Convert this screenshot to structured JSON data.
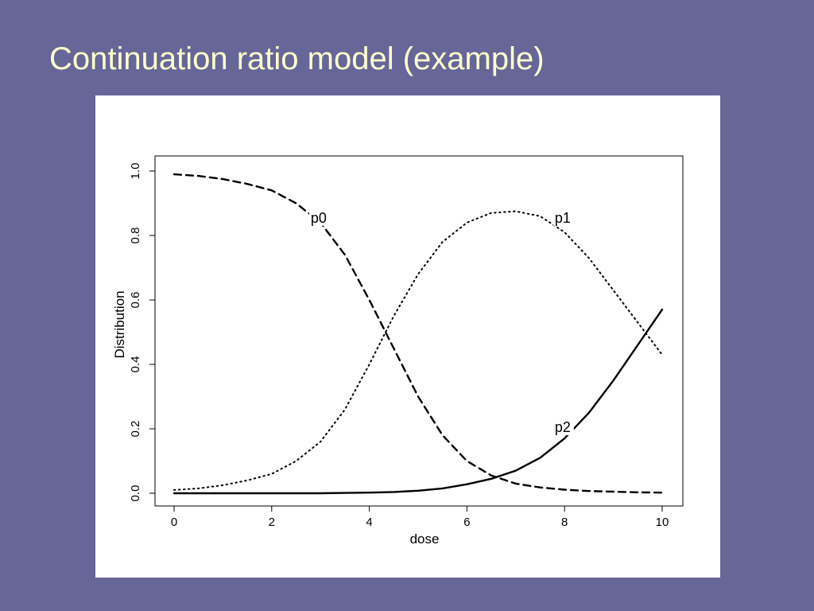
{
  "slide": {
    "title": "Continuation ratio model (example)",
    "colors": {
      "background": "#666699",
      "title": "#FFFFCC",
      "panel": "#FFFFFF"
    }
  },
  "chart_data": {
    "type": "line",
    "title": "",
    "xlabel": "dose",
    "ylabel": "Distribution",
    "xlim": [
      0,
      10
    ],
    "ylim": [
      0,
      1
    ],
    "xticks": [
      0,
      2,
      4,
      6,
      8,
      10
    ],
    "yticks": [
      0.0,
      0.2,
      0.4,
      0.6,
      0.8,
      1.0
    ],
    "ytick_labels": [
      "0.0",
      "0.2",
      "0.4",
      "0.6",
      "0.8",
      "1.0"
    ],
    "grid": false,
    "legend": "none",
    "x": [
      0,
      0.5,
      1,
      1.5,
      2,
      2.5,
      3,
      3.5,
      4,
      4.5,
      5,
      5.5,
      6,
      6.5,
      7,
      7.5,
      8,
      8.5,
      9,
      9.5,
      10
    ],
    "series": [
      {
        "name": "p0",
        "line_style": "dashed",
        "label_at": [
          2.8,
          0.84
        ],
        "values": [
          0.99,
          0.985,
          0.975,
          0.96,
          0.94,
          0.9,
          0.84,
          0.74,
          0.6,
          0.45,
          0.3,
          0.18,
          0.1,
          0.055,
          0.03,
          0.018,
          0.011,
          0.007,
          0.005,
          0.003,
          0.002
        ]
      },
      {
        "name": "p1",
        "line_style": "dotted",
        "label_at": [
          7.8,
          0.84
        ],
        "values": [
          0.01,
          0.015,
          0.025,
          0.04,
          0.06,
          0.1,
          0.16,
          0.26,
          0.4,
          0.55,
          0.68,
          0.78,
          0.84,
          0.87,
          0.875,
          0.86,
          0.81,
          0.73,
          0.63,
          0.53,
          0.43
        ]
      },
      {
        "name": "p2",
        "line_style": "solid",
        "label_at": [
          7.8,
          0.19
        ],
        "values": [
          0.0,
          0.0,
          0.0,
          0.0,
          0.0,
          0.0,
          0.0,
          0.001,
          0.002,
          0.004,
          0.008,
          0.015,
          0.028,
          0.045,
          0.07,
          0.11,
          0.17,
          0.25,
          0.35,
          0.46,
          0.57
        ]
      }
    ]
  }
}
